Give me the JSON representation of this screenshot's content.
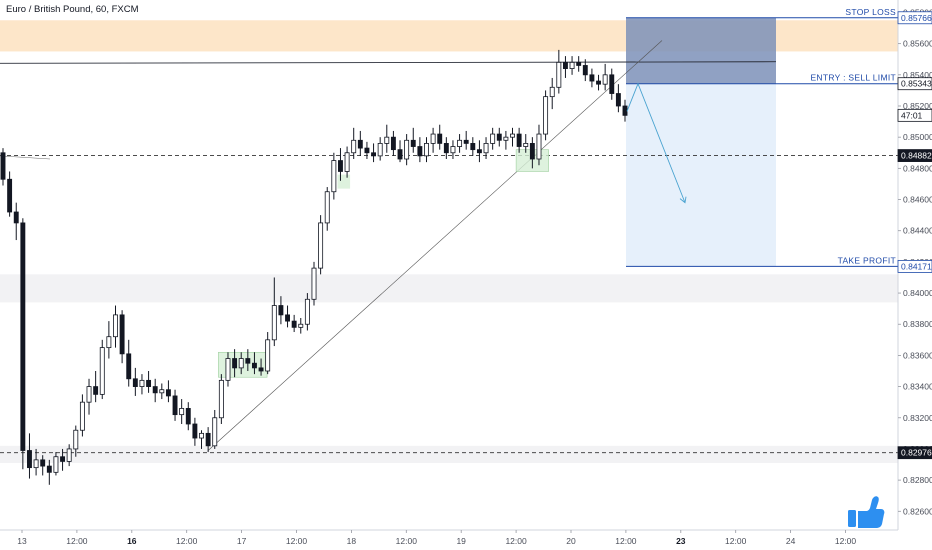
{
  "header": {
    "title": "Euro / British Pound, 60, FXCM"
  },
  "colors": {
    "candle": "#131722",
    "accent": "#1f4aa8",
    "stop_zone": "#fde6c9",
    "gray_zone": "#f2f2f4",
    "demand_zone": "#d6efd6",
    "risk_box": "#7d91b8",
    "reward_box": "#e6f0fb",
    "projection": "#4aa3d0",
    "like_icon": "#2d8ff0"
  },
  "annotations": {
    "stop_loss": "STOP LOSS",
    "entry": "ENTRY : SELL LIMIT",
    "take_profit": "TAKE PROFIT",
    "like_icon": "thumbs-up-icon"
  },
  "chart_data": {
    "type": "candlestick",
    "symbol": "Euro / British Pound",
    "timeframe": "60",
    "source": "FXCM",
    "x_ticks": [
      "13",
      "12:00",
      "16",
      "12:00",
      "17",
      "12:00",
      "18",
      "12:00",
      "19",
      "12:00",
      "20",
      "12:00",
      "23",
      "12:00",
      "24",
      "12:00"
    ],
    "bold_x_ticks": [
      "16",
      "23"
    ],
    "y_ticks": [
      "0.85800",
      "0.85600",
      "0.85400",
      "0.85200",
      "0.85000",
      "0.84800",
      "0.84600",
      "0.84400",
      "0.84200",
      "0.84000",
      "0.83800",
      "0.83600",
      "0.83400",
      "0.83200",
      "0.83000",
      "0.82800",
      "0.82600"
    ],
    "ylim": [
      0.8248,
      0.8588
    ],
    "levels": [
      {
        "label": "STOP LOSS",
        "price": 0.85766,
        "tag": "0.85766",
        "style": "solid"
      },
      {
        "label": "ENTRY : SELL LIMIT",
        "price": 0.85343,
        "tag": "0.85343",
        "style": "solid"
      },
      {
        "label": "TAKE PROFIT",
        "price": 0.84171,
        "tag": "0.84171",
        "style": "solid"
      },
      {
        "label": "",
        "price": 0.84882,
        "tag": "0.84882",
        "style": "dashed"
      },
      {
        "label": "",
        "price": 0.82976,
        "tag": "0.82976",
        "style": "dashed"
      }
    ],
    "current_price_label": "47:01",
    "current_price": 0.8514,
    "zones": [
      {
        "kind": "supply",
        "from": 0.8555,
        "to": 0.8575
      },
      {
        "kind": "range",
        "from": 0.8394,
        "to": 0.8412
      },
      {
        "kind": "range",
        "from": 0.8291,
        "to": 0.8302
      }
    ],
    "position": {
      "side": "short",
      "entry": 0.85343,
      "stop": 0.85766,
      "target": 0.84171
    },
    "candles": [
      [
        0.849,
        0.8493,
        0.8469,
        0.8473
      ],
      [
        0.8473,
        0.8478,
        0.8449,
        0.8452
      ],
      [
        0.8452,
        0.8458,
        0.8434,
        0.8445
      ],
      [
        0.8445,
        0.8448,
        0.8287,
        0.8299
      ],
      [
        0.8299,
        0.831,
        0.8281,
        0.8288
      ],
      [
        0.8288,
        0.83,
        0.8283,
        0.8293
      ],
      [
        0.8293,
        0.8296,
        0.8283,
        0.8289
      ],
      [
        0.8289,
        0.8293,
        0.8277,
        0.8285
      ],
      [
        0.8285,
        0.8298,
        0.8283,
        0.8295
      ],
      [
        0.8295,
        0.83,
        0.8286,
        0.8292
      ],
      [
        0.8292,
        0.8303,
        0.8289,
        0.83
      ],
      [
        0.83,
        0.8315,
        0.8295,
        0.8312
      ],
      [
        0.8312,
        0.8335,
        0.8308,
        0.833
      ],
      [
        0.833,
        0.8345,
        0.8322,
        0.834
      ],
      [
        0.834,
        0.835,
        0.833,
        0.8335
      ],
      [
        0.8335,
        0.837,
        0.8332,
        0.8365
      ],
      [
        0.8365,
        0.8382,
        0.8358,
        0.8372
      ],
      [
        0.8372,
        0.8392,
        0.8365,
        0.8386
      ],
      [
        0.8386,
        0.8389,
        0.8355,
        0.8361
      ],
      [
        0.8361,
        0.837,
        0.834,
        0.8345
      ],
      [
        0.8345,
        0.8352,
        0.8334,
        0.834
      ],
      [
        0.834,
        0.8348,
        0.8335,
        0.8344
      ],
      [
        0.8344,
        0.835,
        0.8336,
        0.834
      ],
      [
        0.834,
        0.8345,
        0.833,
        0.8336
      ],
      [
        0.8336,
        0.8342,
        0.8332,
        0.8338
      ],
      [
        0.8338,
        0.8344,
        0.833,
        0.8334
      ],
      [
        0.8334,
        0.8338,
        0.8318,
        0.8322
      ],
      [
        0.8322,
        0.8332,
        0.8316,
        0.8326
      ],
      [
        0.8326,
        0.833,
        0.8312,
        0.8316
      ],
      [
        0.8316,
        0.832,
        0.8302,
        0.8307
      ],
      [
        0.8307,
        0.8312,
        0.83,
        0.831
      ],
      [
        0.831,
        0.8314,
        0.8298,
        0.8302
      ],
      [
        0.8302,
        0.8325,
        0.83,
        0.832
      ],
      [
        0.832,
        0.8348,
        0.8316,
        0.8344
      ],
      [
        0.8344,
        0.8362,
        0.834,
        0.8358
      ],
      [
        0.8358,
        0.8364,
        0.8346,
        0.8352
      ],
      [
        0.8352,
        0.8362,
        0.8348,
        0.8358
      ],
      [
        0.8358,
        0.8364,
        0.835,
        0.8355
      ],
      [
        0.8355,
        0.8362,
        0.8348,
        0.8352
      ],
      [
        0.8352,
        0.8358,
        0.8347,
        0.835
      ],
      [
        0.835,
        0.8375,
        0.8348,
        0.837
      ],
      [
        0.837,
        0.841,
        0.8366,
        0.8392
      ],
      [
        0.8392,
        0.8398,
        0.838,
        0.8386
      ],
      [
        0.8386,
        0.8392,
        0.8378,
        0.8382
      ],
      [
        0.8382,
        0.8386,
        0.8375,
        0.8378
      ],
      [
        0.8378,
        0.8384,
        0.8374,
        0.838
      ],
      [
        0.838,
        0.84,
        0.8376,
        0.8396
      ],
      [
        0.8396,
        0.842,
        0.8392,
        0.8416
      ],
      [
        0.8416,
        0.845,
        0.8412,
        0.8445
      ],
      [
        0.8445,
        0.8468,
        0.844,
        0.8465
      ],
      [
        0.8465,
        0.849,
        0.846,
        0.8485
      ],
      [
        0.8485,
        0.8493,
        0.8472,
        0.8478
      ],
      [
        0.8478,
        0.8494,
        0.8474,
        0.849
      ],
      [
        0.849,
        0.8506,
        0.8486,
        0.8498
      ],
      [
        0.8498,
        0.8504,
        0.8488,
        0.8493
      ],
      [
        0.8493,
        0.8497,
        0.8486,
        0.849
      ],
      [
        0.849,
        0.8496,
        0.8484,
        0.8488
      ],
      [
        0.8488,
        0.85,
        0.8485,
        0.8496
      ],
      [
        0.8496,
        0.8508,
        0.849,
        0.85
      ],
      [
        0.85,
        0.8504,
        0.8488,
        0.8492
      ],
      [
        0.8492,
        0.8498,
        0.8484,
        0.8486
      ],
      [
        0.8486,
        0.8502,
        0.8482,
        0.8498
      ],
      [
        0.8498,
        0.8506,
        0.849,
        0.8494
      ],
      [
        0.8494,
        0.85,
        0.8484,
        0.8488
      ],
      [
        0.8488,
        0.85,
        0.8484,
        0.8496
      ],
      [
        0.8496,
        0.8506,
        0.849,
        0.8502
      ],
      [
        0.8502,
        0.8508,
        0.8492,
        0.8496
      ],
      [
        0.8496,
        0.85,
        0.8486,
        0.849
      ],
      [
        0.849,
        0.8498,
        0.8486,
        0.8494
      ],
      [
        0.8494,
        0.8502,
        0.849,
        0.8498
      ],
      [
        0.8498,
        0.8504,
        0.8492,
        0.8496
      ],
      [
        0.8496,
        0.85,
        0.8488,
        0.8492
      ],
      [
        0.8492,
        0.8498,
        0.8484,
        0.849
      ],
      [
        0.849,
        0.85,
        0.8486,
        0.8496
      ],
      [
        0.8496,
        0.8506,
        0.8492,
        0.8502
      ],
      [
        0.8502,
        0.8506,
        0.8494,
        0.8498
      ],
      [
        0.8498,
        0.8504,
        0.8492,
        0.85
      ],
      [
        0.85,
        0.8506,
        0.8494,
        0.8502
      ],
      [
        0.8502,
        0.8506,
        0.849,
        0.8494
      ],
      [
        0.8494,
        0.8502,
        0.849,
        0.8496
      ],
      [
        0.8496,
        0.85,
        0.848,
        0.8486
      ],
      [
        0.8486,
        0.8508,
        0.8482,
        0.8502
      ],
      [
        0.8502,
        0.853,
        0.8498,
        0.8526
      ],
      [
        0.8526,
        0.8538,
        0.8518,
        0.8532
      ],
      [
        0.8532,
        0.8556,
        0.8528,
        0.8548
      ],
      [
        0.8548,
        0.8552,
        0.8538,
        0.8544
      ],
      [
        0.8544,
        0.8552,
        0.854,
        0.8548
      ],
      [
        0.8548,
        0.8552,
        0.8542,
        0.8546
      ],
      [
        0.8546,
        0.855,
        0.8536,
        0.854
      ],
      [
        0.854,
        0.8544,
        0.8532,
        0.8536
      ],
      [
        0.8536,
        0.854,
        0.853,
        0.8534
      ],
      [
        0.8534,
        0.8547,
        0.853,
        0.854
      ],
      [
        0.854,
        0.8544,
        0.8524,
        0.8528
      ],
      [
        0.8528,
        0.8534,
        0.8516,
        0.852
      ],
      [
        0.852,
        0.8524,
        0.851,
        0.8514
      ]
    ]
  }
}
